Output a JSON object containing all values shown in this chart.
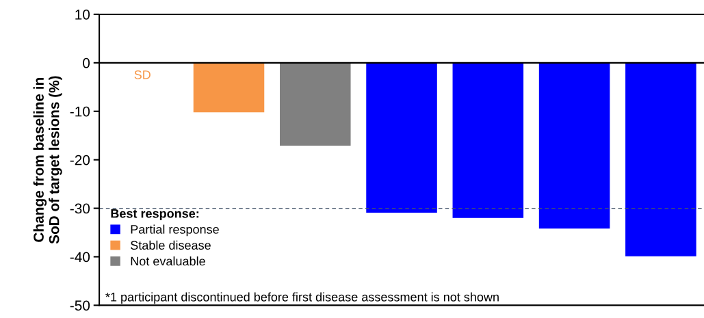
{
  "chart_data": {
    "type": "bar",
    "ylabel": "Change from baseline in\nSoD of target lesions (%)",
    "categories": [
      null,
      null,
      null,
      null,
      null,
      null,
      null
    ],
    "series": [
      {
        "name": "Partial response",
        "color": "#0000ff",
        "values": [
          null,
          null,
          null,
          -30.9,
          -32.0,
          -34.2,
          -39.9
        ]
      },
      {
        "name": "Stable disease",
        "color": "#f79646",
        "values": [
          0,
          -10.2,
          null,
          null,
          null,
          null,
          null
        ],
        "value_labels": [
          "SD",
          null,
          null,
          null,
          null,
          null,
          null
        ]
      },
      {
        "name": "Not evaluable",
        "color": "#808080",
        "values": [
          null,
          null,
          -17.1,
          null,
          null,
          null,
          null
        ]
      }
    ],
    "legend_title": "Best response:",
    "legend": "bottom left",
    "ylim": [
      -50,
      10
    ],
    "yticks": [
      -50,
      -40,
      -30,
      -20,
      -10,
      0,
      10
    ],
    "ref_lines": [
      {
        "axis": "y",
        "value": -30,
        "color": "#44546a",
        "line_style": "dashed"
      }
    ],
    "annotations": [
      "*1 participant discontinued before first disease assessment is not shown"
    ],
    "grid": false
  }
}
